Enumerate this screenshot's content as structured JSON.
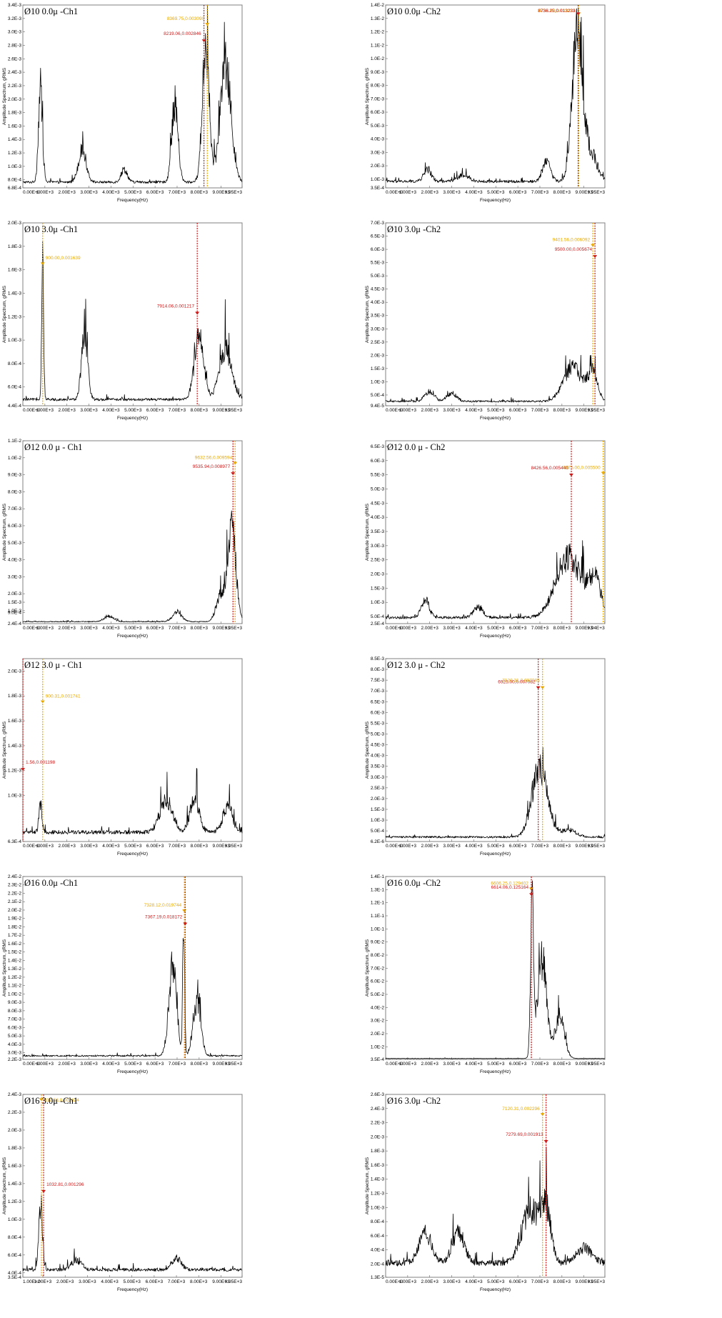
{
  "colors": {
    "cursor_yellow": "#e8a800",
    "cursor_red": "#cc1a1a",
    "trace": "#000000"
  },
  "chart_data": [
    {
      "type": "line",
      "title": "Ø10 0.0μ -Ch1",
      "xlabel": "Frequency(Hz)",
      "ylabel": "Amplitude Spectrum, gRMS",
      "xlim": [
        0,
        9950
      ],
      "ylim": [
        0.00068,
        0.0034
      ],
      "x_ticks": [
        "0.00E+0",
        "1.00E+3",
        "2.00E+3",
        "3.00E+3",
        "4.00E+3",
        "5.00E+3",
        "6.00E+3",
        "7.00E+3",
        "8.00E+3",
        "9.00E+3",
        "9.95E+3"
      ],
      "y_ticks": [
        "6.8E-4",
        "8.0E-4",
        "1.0E-3",
        "1.2E-3",
        "1.4E-3",
        "1.6E-3",
        "1.8E-3",
        "2.0E-3",
        "2.2E-3",
        "2.4E-3",
        "2.6E-3",
        "2.8E-3",
        "3.0E-3",
        "3.2E-3",
        "3.4E-3"
      ],
      "baseline": 0.00076,
      "peaks": [
        [
          800,
          0.0013,
          130
        ],
        [
          2700,
          0.00045,
          250
        ],
        [
          4600,
          0.00018,
          200
        ],
        [
          6900,
          0.0011,
          200
        ],
        [
          8300,
          0.0019,
          220
        ],
        [
          9200,
          0.0016,
          350
        ]
      ],
      "cursors": [
        {
          "color": "yellow",
          "x": 8369.75,
          "y": 0.00309,
          "label": "8369.75,0.003090"
        },
        {
          "color": "red",
          "x": 8219.06,
          "y": 0.002846,
          "label": "8219.06,0.002846"
        }
      ]
    },
    {
      "type": "line",
      "title": "Ø10 0.0μ -Ch2",
      "xlabel": "Frequency(Hz)",
      "ylabel": "Amplitude Spectrum, gRMS",
      "xlim": [
        0,
        9950
      ],
      "ylim": [
        0.00035,
        0.014
      ],
      "x_ticks": [
        "0.00E+0",
        "1.00E+3",
        "2.00E+3",
        "3.00E+3",
        "4.00E+3",
        "5.00E+3",
        "6.00E+3",
        "7.00E+3",
        "8.00E+3",
        "9.00E+3",
        "9.95E+3"
      ],
      "y_ticks": [
        "3.5E-4",
        "1.0E-3",
        "2.0E-3",
        "3.0E-3",
        "4.0E-3",
        "5.0E-3",
        "6.0E-3",
        "7.0E-3",
        "8.0E-3",
        "9.0E-3",
        "1.0E-2",
        "1.1E-2",
        "1.2E-2",
        "1.3E-2",
        "1.4E-2"
      ],
      "baseline": 0.0008,
      "peaks": [
        [
          1900,
          0.0008,
          250
        ],
        [
          3500,
          0.0004,
          400
        ],
        [
          7300,
          0.0015,
          250
        ],
        [
          8700,
          0.0105,
          330
        ],
        [
          9300,
          0.002,
          400
        ]
      ],
      "cursors": [
        {
          "color": "yellow",
          "x": 8758.62,
          "y": 0.013226,
          "label": "8758.62,0.013226"
        },
        {
          "color": "red",
          "x": 8736.25,
          "y": 0.013233,
          "label": "8736.25,0.013233"
        }
      ]
    },
    {
      "type": "line",
      "title": "Ø10 3.0μ -Ch1",
      "xlabel": "Frequency(Hz)",
      "ylabel": "Amplitude Spectrum, gRMS",
      "xlim": [
        0,
        9950
      ],
      "ylim": [
        0.00044,
        0.002
      ],
      "x_ticks": [
        "0.00E+0",
        "1.00E+3",
        "2.00E+3",
        "3.00E+3",
        "4.00E+3",
        "5.00E+3",
        "6.00E+3",
        "7.00E+3",
        "8.00E+3",
        "9.00E+3",
        "9.95E+3"
      ],
      "y_ticks": [
        "4.4E-4",
        "6.0E-4",
        "8.0E-4",
        "1.0E-3",
        "1.2E-3",
        "1.4E-3",
        "1.6E-3",
        "1.8E-3",
        "2.0E-3"
      ],
      "baseline": 0.00049,
      "peaks": [
        [
          900,
          0.0011,
          60
        ],
        [
          2800,
          0.0005,
          200
        ],
        [
          8000,
          0.0005,
          300
        ],
        [
          9200,
          0.0004,
          400
        ]
      ],
      "cursors": [
        {
          "color": "yellow",
          "x": 900.0,
          "y": 0.001639,
          "label": "900.00,0.001639"
        },
        {
          "color": "red",
          "x": 7914.06,
          "y": 0.001217,
          "label": "7914.06,0.001217"
        }
      ]
    },
    {
      "type": "line",
      "title": "Ø10 3.0μ -Ch2",
      "xlabel": "Frequency(Hz)",
      "ylabel": "Amplitude Spectrum, gRMS",
      "xlim": [
        0,
        9950
      ],
      "ylim": [
        9.4e-05,
        0.007
      ],
      "x_ticks": [
        "0.00E+0",
        "1.00E+3",
        "2.00E+3",
        "3.00E+3",
        "4.00E+3",
        "5.00E+3",
        "6.00E+3",
        "7.00E+3",
        "8.00E+3",
        "9.00E+3",
        "9.95E+3"
      ],
      "y_ticks": [
        "9.4E-5",
        "5.0E-4",
        "1.0E-3",
        "1.5E-3",
        "2.0E-3",
        "2.5E-3",
        "3.0E-3",
        "3.5E-3",
        "4.0E-3",
        "4.5E-3",
        "5.0E-3",
        "5.5E-3",
        "6.0E-3",
        "6.5E-3",
        "7.0E-3"
      ],
      "baseline": 0.00025,
      "peaks": [
        [
          2000,
          0.00035,
          300
        ],
        [
          3000,
          0.0003,
          300
        ],
        [
          8500,
          0.0012,
          600
        ],
        [
          9400,
          0.001,
          300
        ]
      ],
      "cursors": [
        {
          "color": "yellow",
          "x": 9401.56,
          "y": 0.006092,
          "label": "9401.56,0.006092"
        },
        {
          "color": "red",
          "x": 9500.0,
          "y": 0.005674,
          "label": "9500.00,0.005674"
        }
      ]
    },
    {
      "type": "line",
      "title": "Ø12 0.0 μ - Ch1",
      "xlabel": "Frequency(Hz)",
      "ylabel": "Amplitude Spectrum, gRMS",
      "xlim": [
        0,
        9950
      ],
      "ylim": [
        0.00024,
        0.011
      ],
      "x_ticks": [
        "0.00E+0",
        "1.00E+3",
        "2.00E+3",
        "3.00E+3",
        "4.00E+3",
        "5.00E+3",
        "6.00E+3",
        "7.00E+3",
        "8.00E+3",
        "9.00E+3",
        "9.95E+3"
      ],
      "y_ticks": [
        "2.4E-4",
        "9.0E-4",
        "1.0E-3",
        "1.5E-3",
        "2.0E-3",
        "3.0E-3",
        "4.0E-3",
        "5.0E-3",
        "6.0E-3",
        "7.0E-3",
        "8.0E-3",
        "9.0E-3",
        "1.0E-2",
        "1.1E-2"
      ],
      "baseline": 0.00035,
      "peaks": [
        [
          3900,
          0.0003,
          300
        ],
        [
          7000,
          0.0005,
          300
        ],
        [
          9000,
          0.0015,
          300
        ],
        [
          9500,
          0.005,
          250
        ]
      ],
      "cursors": [
        {
          "color": "yellow",
          "x": 9632.56,
          "y": 0.009594,
          "label": "9632.56,0.009594"
        },
        {
          "color": "red",
          "x": 9535.94,
          "y": 0.008977,
          "label": "9535.94,0.008977"
        }
      ]
    },
    {
      "type": "line",
      "title": "Ø12 0.0 μ - Ch2",
      "xlabel": "Frequency(Hz)",
      "ylabel": "Amplitude Spectrum, gRMS",
      "xlim": [
        0,
        9950
      ],
      "ylim": [
        0.00025,
        0.0067
      ],
      "x_ticks": [
        "0.00E+0",
        "1.00E+3",
        "2.00E+3",
        "3.00E+3",
        "4.00E+3",
        "5.00E+3",
        "6.00E+3",
        "7.00E+3",
        "8.00E+3",
        "9.00E+3",
        "9.94E+3"
      ],
      "y_ticks": [
        "2.5E-4",
        "5.0E-4",
        "1.0E-3",
        "1.5E-3",
        "2.0E-3",
        "2.5E-3",
        "3.0E-3",
        "3.5E-3",
        "4.0E-3",
        "4.5E-3",
        "5.0E-3",
        "5.5E-3",
        "6.0E-3",
        "6.5E-3"
      ],
      "baseline": 0.00045,
      "peaks": [
        [
          1800,
          0.0006,
          250
        ],
        [
          4200,
          0.00035,
          300
        ],
        [
          8300,
          0.002,
          800
        ],
        [
          9500,
          0.0012,
          400
        ]
      ],
      "cursors": [
        {
          "color": "yellow",
          "x": 9875.0,
          "y": 0.0055,
          "label": "9875.00,0.005500"
        },
        {
          "color": "red",
          "x": 8426.56,
          "y": 0.00544,
          "label": "8426.56,0.005440"
        }
      ]
    },
    {
      "type": "line",
      "title": "Ø12 3.0 μ - Ch1",
      "xlabel": "Frequency(Hz)",
      "ylabel": "Amplitude Spectrum, gRMS",
      "xlim": [
        0,
        9950
      ],
      "ylim": [
        0.00063,
        0.0021
      ],
      "x_ticks": [
        "0.00E+0",
        "1.00E+3",
        "2.00E+3",
        "3.00E+3",
        "4.00E+3",
        "5.00E+3",
        "6.00E+3",
        "7.00E+3",
        "8.00E+3",
        "9.00E+3",
        "9.95E+3"
      ],
      "y_ticks": [
        "6.3E-4",
        "1.0E-3",
        "1.2E-3",
        "1.4E-3",
        "1.6E-3",
        "1.8E-3",
        "2.0E-3"
      ],
      "baseline": 0.0007,
      "peaks": [
        [
          800,
          0.0002,
          100
        ],
        [
          6500,
          0.00025,
          400
        ],
        [
          7800,
          0.00025,
          300
        ],
        [
          9300,
          0.0002,
          300
        ]
      ],
      "cursors": [
        {
          "color": "yellow",
          "x": 900.31,
          "y": 0.001741,
          "label": "900.31,0.001741"
        },
        {
          "color": "red",
          "x": 1.56,
          "y": 0.001198,
          "label": "1.56,0.001198"
        }
      ]
    },
    {
      "type": "line",
      "title": "Ø12 3.0 μ - Ch2",
      "xlabel": "Frequency(Hz)",
      "ylabel": "Amplitude Spectrum, gRMS",
      "xlim": [
        0,
        9950
      ],
      "ylim": [
        6.2e-06,
        0.0085
      ],
      "x_ticks": [
        "0.00E+0",
        "1.00E+3",
        "2.00E+3",
        "3.00E+3",
        "4.00E+3",
        "5.00E+3",
        "6.00E+3",
        "7.00E+3",
        "8.00E+3",
        "9.00E+3",
        "9.95E+3"
      ],
      "y_ticks": [
        "6.2E-6",
        "5.0E-4",
        "1.0E-3",
        "1.5E-3",
        "2.0E-3",
        "2.5E-3",
        "3.0E-3",
        "3.5E-3",
        "4.0E-3",
        "4.5E-3",
        "5.0E-3",
        "5.5E-3",
        "6.0E-3",
        "6.5E-3",
        "7.0E-3",
        "7.5E-3",
        "8.0E-3",
        "8.5E-3"
      ],
      "baseline": 0.0002,
      "peaks": [
        [
          7000,
          0.003,
          500
        ],
        [
          8300,
          0.0003,
          500
        ]
      ],
      "cursors": [
        {
          "color": "red",
          "x": 6925.0,
          "y": 0.007082,
          "label": "6925.00,0.007082"
        },
        {
          "color": "yellow",
          "x": 7120.31,
          "y": 0.007085,
          "label": "7120.31,0.007085"
        }
      ]
    },
    {
      "type": "line",
      "title": "Ø16 0.0μ -Ch1",
      "xlabel": "Frequency(Hz)",
      "ylabel": "Amplitude Spectrum, gRMS",
      "xlim": [
        0,
        9950
      ],
      "ylim": [
        0.0022,
        0.024
      ],
      "x_ticks": [
        "0.00E+0",
        "1.00E+3",
        "2.00E+3",
        "3.00E+3",
        "4.00E+3",
        "5.00E+3",
        "6.00E+3",
        "7.00E+3",
        "8.00E+3",
        "9.00E+3",
        "9.95E+3"
      ],
      "y_ticks": [
        "2.2E-3",
        "3.0E-3",
        "4.0E-3",
        "5.0E-3",
        "6.0E-3",
        "7.0E-3",
        "8.0E-3",
        "9.0E-3",
        "1.0E-2",
        "1.1E-2",
        "1.2E-2",
        "1.3E-2",
        "1.4E-2",
        "1.5E-2",
        "1.6E-2",
        "1.7E-2",
        "1.8E-2",
        "1.9E-2",
        "2.0E-2",
        "2.1E-2",
        "2.2E-2",
        "2.3E-2",
        "2.4E-2"
      ],
      "baseline": 0.0026,
      "peaks": [
        [
          6800,
          0.01,
          250
        ],
        [
          7300,
          0.016,
          60
        ],
        [
          7900,
          0.006,
          250
        ]
      ],
      "cursors": [
        {
          "color": "yellow",
          "x": 7328.12,
          "y": 0.019744,
          "label": "7328.12,0.019744"
        },
        {
          "color": "red",
          "x": 7367.19,
          "y": 0.018172,
          "label": "7367.19,0.018172"
        }
      ]
    },
    {
      "type": "line",
      "title": "Ø16 0.0μ -Ch2",
      "xlabel": "Frequency(Hz)",
      "ylabel": "Amplitude Spectrum, gRMS",
      "xlim": [
        0,
        9950
      ],
      "ylim": [
        0.00035,
        0.14
      ],
      "x_ticks": [
        "0.00E+0",
        "1.00E+3",
        "2.00E+3",
        "3.00E+3",
        "4.00E+3",
        "5.00E+3",
        "6.00E+3",
        "7.00E+3",
        "8.00E+3",
        "9.00E+3",
        "9.95E+3"
      ],
      "y_ticks": [
        "3.5E-4",
        "1.0E-2",
        "2.0E-2",
        "3.0E-2",
        "4.0E-2",
        "5.0E-2",
        "6.0E-2",
        "7.0E-2",
        "8.0E-2",
        "9.0E-2",
        "1.0E-1",
        "1.1E-1",
        "1.2E-1",
        "1.3E-1",
        "1.4E-1"
      ],
      "baseline": 0.001,
      "peaks": [
        [
          6650,
          0.11,
          100
        ],
        [
          7100,
          0.07,
          300
        ],
        [
          7900,
          0.03,
          300
        ]
      ],
      "cursors": [
        {
          "color": "yellow",
          "x": 6606.25,
          "y": 0.129402,
          "label": "6606.25,0.129402"
        },
        {
          "color": "red",
          "x": 6614.06,
          "y": 0.125164,
          "label": "6614.06,0.125164"
        }
      ]
    },
    {
      "type": "line",
      "title": "Ø16 3.0μ -Ch1",
      "xlabel": "Frequency(Hz)",
      "ylabel": "Amplitude Spectrum, gRMS",
      "xlim": [
        100,
        9950
      ],
      "ylim": [
        0.00035,
        0.0024
      ],
      "x_ticks": [
        "1.00E+2",
        "1.00E+3",
        "2.00E+3",
        "3.00E+3",
        "4.00E+3",
        "5.00E+3",
        "6.00E+3",
        "7.00E+3",
        "8.00E+3",
        "9.00E+3",
        "9.95E+3"
      ],
      "y_ticks": [
        "3.5E-4",
        "4.0E-4",
        "6.0E-4",
        "8.0E-4",
        "1.0E-3",
        "1.2E-3",
        "1.4E-3",
        "1.6E-3",
        "1.8E-3",
        "2.0E-3",
        "2.2E-3",
        "2.4E-3"
      ],
      "baseline": 0.00043,
      "peaks": [
        [
          900,
          0.0007,
          120
        ],
        [
          2500,
          0.0001,
          300
        ],
        [
          7000,
          0.00012,
          300
        ]
      ],
      "cursors": [
        {
          "color": "yellow",
          "x": 932.56,
          "y": 0.002324,
          "label": "932.56,0.002324"
        },
        {
          "color": "red",
          "x": 1032.81,
          "y": 0.001296,
          "label": "1032.81,0.001296"
        }
      ]
    },
    {
      "type": "line",
      "title": "Ø16 3.0μ -Ch2",
      "xlabel": "Frequency(Hz)",
      "ylabel": "Amplitude Spectrum, gRMS",
      "xlim": [
        0,
        9950
      ],
      "ylim": [
        1.3e-05,
        0.0026
      ],
      "x_ticks": [
        "0.00E+0",
        "1.00E+3",
        "2.00E+3",
        "3.00E+3",
        "4.00E+3",
        "5.00E+3",
        "6.00E+3",
        "7.00E+3",
        "8.00E+3",
        "9.00E+3",
        "9.95E+3"
      ],
      "y_ticks": [
        "1.3E-5",
        "2.0E-4",
        "4.0E-4",
        "6.0E-4",
        "8.0E-4",
        "1.0E-3",
        "1.2E-3",
        "1.4E-3",
        "1.6E-3",
        "1.8E-3",
        "2.0E-3",
        "2.2E-3",
        "2.4E-3",
        "2.6E-3"
      ],
      "baseline": 0.0002,
      "peaks": [
        [
          1800,
          0.0004,
          400
        ],
        [
          3300,
          0.0004,
          400
        ],
        [
          6600,
          0.0007,
          600
        ],
        [
          7300,
          0.0006,
          300
        ],
        [
          9000,
          0.0002,
          500
        ]
      ],
      "cursors": [
        {
          "color": "yellow",
          "x": 7120.31,
          "y": 0.002296,
          "label": "7120.31,0.002296"
        },
        {
          "color": "red",
          "x": 7279.69,
          "y": 0.001913,
          "label": "7279.69,0.001913"
        }
      ]
    }
  ]
}
